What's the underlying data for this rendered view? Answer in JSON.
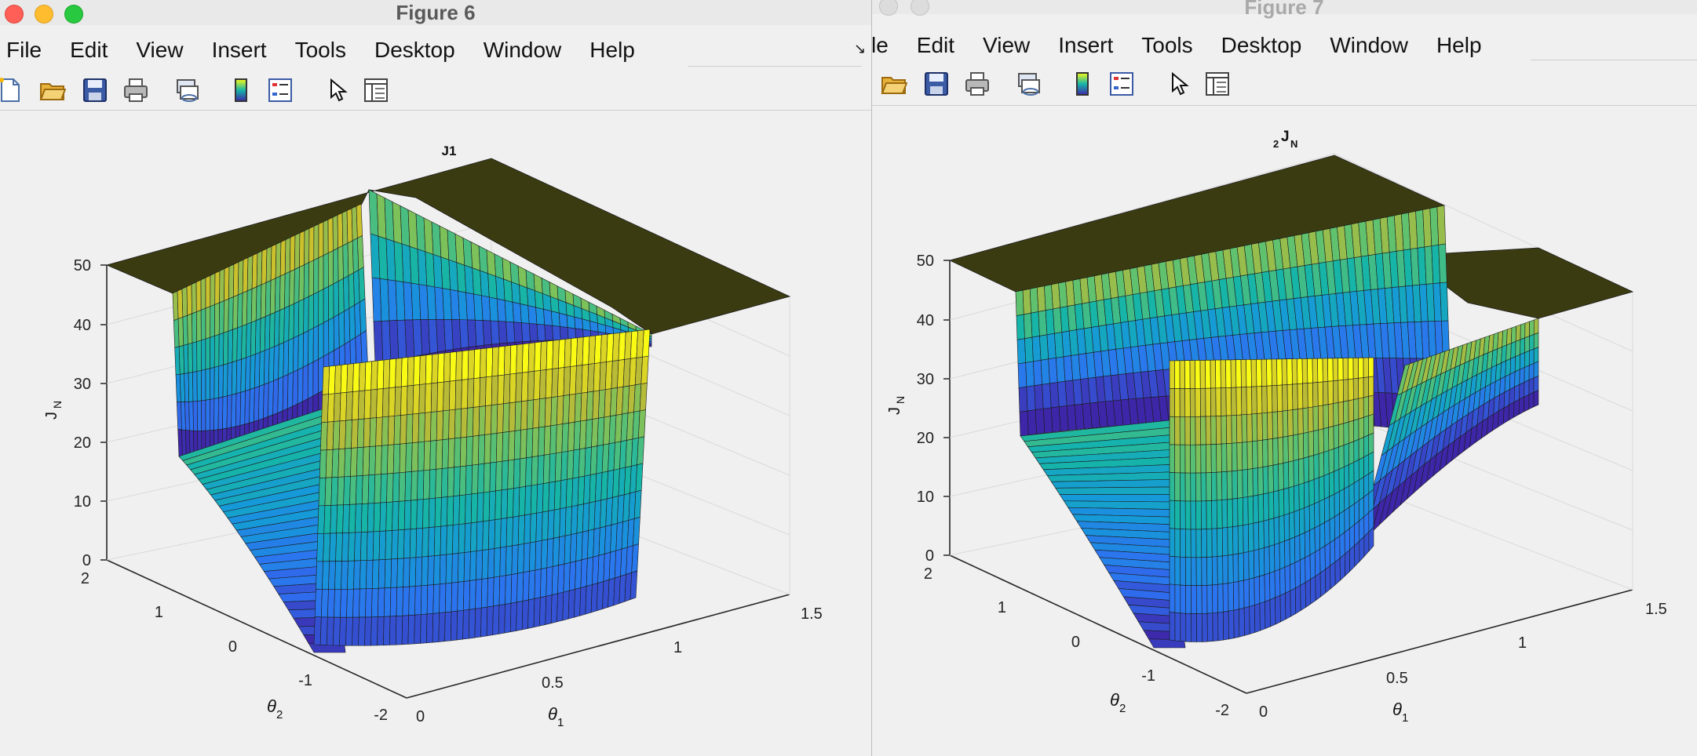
{
  "figure6": {
    "window_title": "Figure 6",
    "menu": [
      "File",
      "Edit",
      "View",
      "Insert",
      "Tools",
      "Desktop",
      "Window",
      "Help"
    ],
    "toolbar_icons": [
      "new-figure-icon",
      "open-file-icon",
      "save-icon",
      "print-icon",
      "link-plot-icon",
      "insert-colorbar-icon",
      "insert-legend-icon",
      "edit-plot-icon",
      "property-inspector-icon"
    ],
    "plot": {
      "title": "J1",
      "zlabel": "J",
      "zlabel_sub": "N",
      "xlabel": "θ",
      "xlabel_sub": "1",
      "ylabel": "θ",
      "ylabel_sub": "2",
      "z_ticks": [
        "0",
        "10",
        "20",
        "30",
        "40",
        "50"
      ],
      "y_ticks": [
        "2",
        "1",
        "0",
        "-1",
        "-2"
      ],
      "x_ticks": [
        "0",
        "0.5",
        "1",
        "1.5"
      ]
    }
  },
  "figure7": {
    "window_title": "Figure 7",
    "menu": [
      "le",
      "Edit",
      "View",
      "Insert",
      "Tools",
      "Desktop",
      "Window",
      "Help"
    ],
    "toolbar_icons": [
      "open-file-icon",
      "save-icon",
      "print-icon",
      "link-plot-icon",
      "insert-colorbar-icon",
      "insert-legend-icon",
      "edit-plot-icon",
      "property-inspector-icon"
    ],
    "plot": {
      "title_pre": "2",
      "title_main": "J",
      "title_sub": "N",
      "zlabel": "J",
      "zlabel_sub": "N",
      "xlabel": "θ",
      "xlabel_sub": "1",
      "ylabel": "θ",
      "ylabel_sub": "2",
      "z_ticks": [
        "0",
        "10",
        "20",
        "30",
        "40",
        "50"
      ],
      "y_ticks": [
        "2",
        "1",
        "0",
        "-1",
        "-2"
      ],
      "x_ticks": [
        "0",
        "0.5",
        "1",
        "1.5"
      ]
    }
  },
  "colors": {
    "accent_parula_low": "#3e26a8",
    "accent_parula_mid": "#16b5a8",
    "accent_parula_high": "#f9fb15",
    "plateau": "#3f3f14"
  }
}
